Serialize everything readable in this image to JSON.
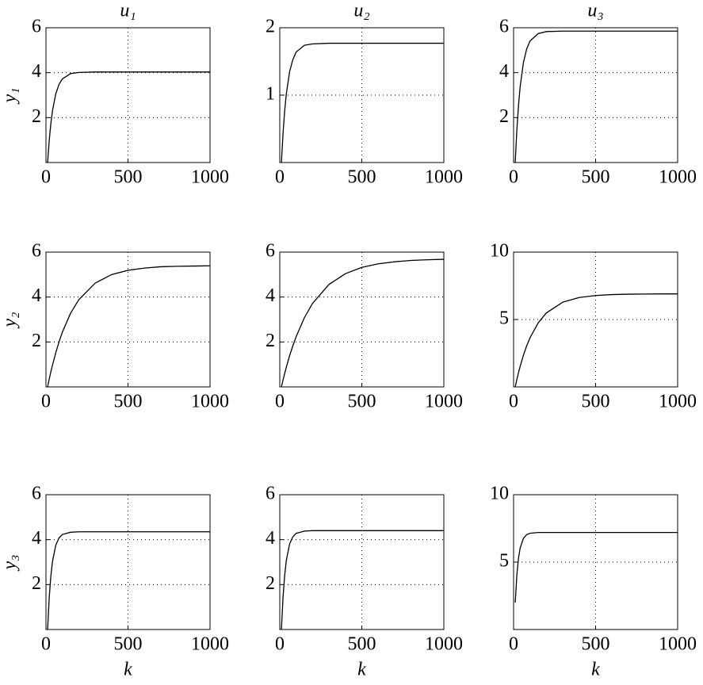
{
  "chart_data": [
    {
      "type": "line",
      "title": "u₁",
      "ylabel": "y₁",
      "x": [
        10,
        20,
        30,
        40,
        60,
        80,
        100,
        150,
        200,
        300,
        400,
        500,
        600,
        700,
        800,
        900,
        1000
      ],
      "values": [
        0,
        1.0,
        1.75,
        2.32,
        3.06,
        3.49,
        3.72,
        3.96,
        4.01,
        4.03,
        4.03,
        4.03,
        4.03,
        4.03,
        4.03,
        4.03,
        4.03
      ],
      "color": "#000000",
      "xlim": [
        0,
        1000
      ],
      "xticks": [
        0,
        500,
        1000
      ],
      "ylim": [
        0,
        6
      ],
      "yticks": [
        2,
        4,
        6
      ],
      "grid": true
    },
    {
      "type": "line",
      "title": "u₂",
      "x": [
        10,
        20,
        30,
        40,
        60,
        80,
        100,
        150,
        200,
        300,
        400,
        500,
        600,
        700,
        800,
        900,
        1000
      ],
      "values": [
        0,
        0.44,
        0.77,
        1.02,
        1.35,
        1.53,
        1.64,
        1.74,
        1.76,
        1.77,
        1.77,
        1.77,
        1.77,
        1.77,
        1.77,
        1.77,
        1.77
      ],
      "color": "#000000",
      "xlim": [
        0,
        1000
      ],
      "xticks": [
        0,
        500,
        1000
      ],
      "ylim": [
        0,
        2
      ],
      "yticks": [
        1,
        2
      ],
      "grid": true
    },
    {
      "type": "line",
      "title": "u₃",
      "x": [
        10,
        20,
        30,
        40,
        60,
        80,
        100,
        150,
        200,
        300,
        400,
        500,
        600,
        700,
        800,
        900,
        1000
      ],
      "values": [
        0,
        1.46,
        2.54,
        3.37,
        4.45,
        5.06,
        5.41,
        5.74,
        5.83,
        5.85,
        5.85,
        5.85,
        5.85,
        5.85,
        5.85,
        5.85,
        5.85
      ],
      "color": "#000000",
      "xlim": [
        0,
        1000
      ],
      "xticks": [
        0,
        500,
        1000
      ],
      "ylim": [
        0,
        6
      ],
      "yticks": [
        2,
        4,
        6
      ],
      "grid": true
    },
    {
      "type": "line",
      "ylabel": "y₂",
      "x": [
        10,
        20,
        30,
        40,
        60,
        80,
        100,
        150,
        200,
        300,
        400,
        500,
        600,
        700,
        800,
        900,
        1000
      ],
      "values": [
        0,
        0.35,
        0.68,
        0.98,
        1.53,
        2.01,
        2.44,
        3.28,
        3.88,
        4.62,
        5.0,
        5.19,
        5.29,
        5.35,
        5.37,
        5.38,
        5.39
      ],
      "color": "#000000",
      "xlim": [
        0,
        1000
      ],
      "xticks": [
        0,
        500,
        1000
      ],
      "ylim": [
        0,
        6
      ],
      "yticks": [
        2,
        4,
        6
      ],
      "grid": true
    },
    {
      "type": "line",
      "x": [
        10,
        20,
        30,
        40,
        60,
        80,
        100,
        150,
        200,
        300,
        400,
        500,
        600,
        700,
        800,
        900,
        1000
      ],
      "values": [
        0,
        0.31,
        0.6,
        0.88,
        1.39,
        1.84,
        2.24,
        3.08,
        3.72,
        4.56,
        5.04,
        5.32,
        5.48,
        5.57,
        5.63,
        5.66,
        5.68
      ],
      "color": "#000000",
      "xlim": [
        0,
        1000
      ],
      "xticks": [
        0,
        500,
        1000
      ],
      "ylim": [
        0,
        6
      ],
      "yticks": [
        2,
        4,
        6
      ],
      "grid": true
    },
    {
      "type": "line",
      "x": [
        10,
        20,
        30,
        40,
        60,
        80,
        100,
        150,
        200,
        300,
        400,
        500,
        600,
        700,
        800,
        900,
        1000
      ],
      "values": [
        0,
        0.55,
        1.06,
        1.52,
        2.35,
        3.05,
        3.64,
        4.75,
        5.49,
        6.29,
        6.63,
        6.78,
        6.85,
        6.88,
        6.89,
        6.9,
        6.9
      ],
      "color": "#000000",
      "xlim": [
        0,
        1000
      ],
      "xticks": [
        0,
        500,
        1000
      ],
      "ylim": [
        0,
        10
      ],
      "yticks": [
        5,
        10
      ],
      "grid": true
    },
    {
      "type": "line",
      "ylabel": "y₃",
      "xlabel": "k",
      "x": [
        10,
        20,
        30,
        40,
        60,
        80,
        100,
        150,
        200,
        300,
        400,
        500,
        600,
        700,
        800,
        900,
        1000
      ],
      "values": [
        0,
        1.44,
        2.4,
        3.04,
        3.76,
        4.08,
        4.23,
        4.33,
        4.35,
        4.35,
        4.35,
        4.35,
        4.35,
        4.35,
        4.35,
        4.35,
        4.35
      ],
      "color": "#000000",
      "xlim": [
        0,
        1000
      ],
      "xticks": [
        0,
        500,
        1000
      ],
      "ylim": [
        0,
        6
      ],
      "yticks": [
        2,
        4,
        6
      ],
      "grid": true
    },
    {
      "type": "line",
      "xlabel": "k",
      "x": [
        10,
        20,
        30,
        40,
        60,
        80,
        100,
        150,
        200,
        300,
        400,
        500,
        600,
        700,
        800,
        900,
        1000
      ],
      "values": [
        0,
        1.45,
        2.42,
        3.08,
        3.81,
        4.13,
        4.28,
        4.38,
        4.4,
        4.4,
        4.4,
        4.4,
        4.4,
        4.4,
        4.4,
        4.4,
        4.4
      ],
      "color": "#000000",
      "xlim": [
        0,
        1000
      ],
      "xticks": [
        0,
        500,
        1000
      ],
      "ylim": [
        0,
        6
      ],
      "yticks": [
        2,
        4,
        6
      ],
      "grid": true
    },
    {
      "type": "line",
      "xlabel": "k",
      "x": [
        10,
        20,
        30,
        40,
        60,
        80,
        100,
        150,
        200,
        300,
        400,
        500,
        600,
        700,
        800,
        900,
        1000
      ],
      "values": [
        2,
        4.04,
        5.29,
        6.04,
        6.77,
        7.04,
        7.14,
        7.2,
        7.2,
        7.2,
        7.2,
        7.2,
        7.2,
        7.2,
        7.2,
        7.2,
        7.2
      ],
      "color": "#000000",
      "xlim": [
        0,
        1000
      ],
      "xticks": [
        0,
        500,
        1000
      ],
      "ylim": [
        0,
        10
      ],
      "yticks": [
        5,
        10
      ],
      "grid": true
    }
  ]
}
